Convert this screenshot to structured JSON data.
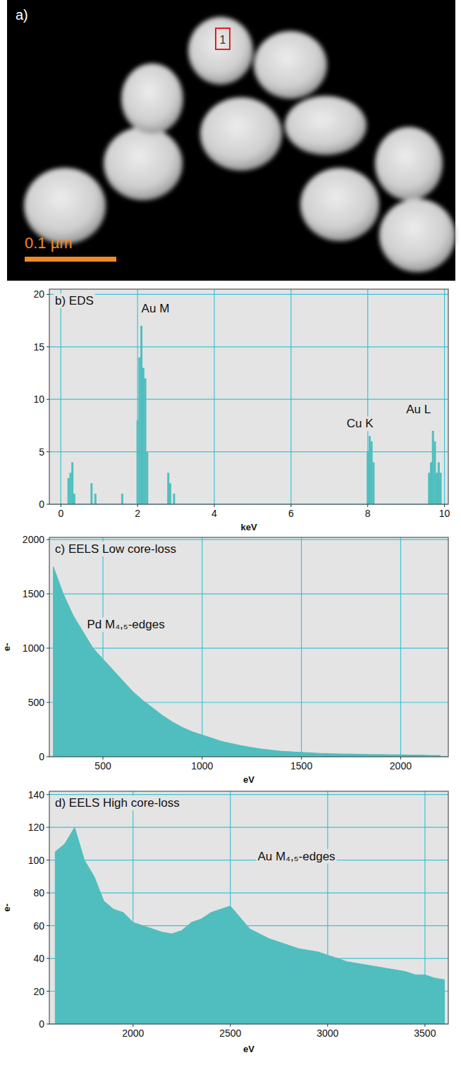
{
  "chart_data": [
    {
      "type": "image",
      "title": "a)",
      "region_label": "1",
      "scale_bar_label": "0.1 µm"
    },
    {
      "type": "bar",
      "title": "b) EDS",
      "x_label": "keV",
      "color": "#50bebe",
      "grid": true,
      "x": [
        0.2,
        0.25,
        0.3,
        0.35,
        0.8,
        0.9,
        1.6,
        2.0,
        2.05,
        2.1,
        2.15,
        2.2,
        2.25,
        2.8,
        2.85,
        2.95,
        8.0,
        8.05,
        8.1,
        8.15,
        9.6,
        9.65,
        9.7,
        9.75,
        9.8,
        9.85,
        9.9
      ],
      "values": [
        2.5,
        3,
        4,
        1,
        2,
        1,
        1,
        8,
        14,
        17,
        13,
        12,
        5,
        3,
        2,
        1,
        5,
        6.5,
        6,
        4,
        3,
        4,
        7,
        6,
        3,
        4,
        3
      ],
      "xlim": [
        -0.3,
        10.1
      ],
      "ylim": [
        0,
        20.5
      ],
      "xticks": [
        0,
        2,
        4,
        6,
        8,
        10
      ],
      "yticks": [
        0,
        5,
        10,
        15,
        20
      ],
      "annotations": [
        {
          "text": "Au M",
          "x": 2.1,
          "y": 18.3
        },
        {
          "text": "Cu K",
          "x": 7.45,
          "y": 7.3
        },
        {
          "text": "Au L",
          "x": 9.0,
          "y": 8.7
        }
      ]
    },
    {
      "type": "area",
      "title": "c) EELS Low core-loss",
      "x_label": "eV",
      "y_label": "e-",
      "color": "#50bebe",
      "grid": true,
      "x": [
        250,
        300,
        350,
        400,
        450,
        500,
        550,
        600,
        650,
        700,
        750,
        800,
        850,
        900,
        950,
        1000,
        1050,
        1100,
        1150,
        1200,
        1250,
        1300,
        1350,
        1400,
        1450,
        1500,
        1550,
        1600,
        1650,
        1700,
        1750,
        1800,
        1850,
        1900,
        1950,
        2000,
        2050,
        2100,
        2150,
        2200
      ],
      "values": [
        1750,
        1500,
        1300,
        1150,
        1000,
        900,
        800,
        700,
        600,
        520,
        450,
        380,
        320,
        270,
        230,
        200,
        170,
        140,
        120,
        100,
        85,
        70,
        60,
        50,
        45,
        40,
        35,
        30,
        28,
        25,
        25,
        22,
        20,
        20,
        18,
        18,
        15,
        15,
        12,
        12
      ],
      "xlim": [
        230,
        2240
      ],
      "ylim": [
        0,
        2020
      ],
      "xticks": [
        500,
        1000,
        1500,
        2000
      ],
      "yticks": [
        0,
        500,
        1000,
        1500,
        2000
      ],
      "annotations": [
        {
          "text": "Pd M₄,₅-edges",
          "x": 420,
          "y": 1180
        }
      ]
    },
    {
      "type": "area",
      "title": "d) EELS High core-loss",
      "x_label": "eV",
      "y_label": "e-",
      "color": "#50bebe",
      "grid": true,
      "x": [
        1600,
        1650,
        1700,
        1750,
        1800,
        1850,
        1900,
        1950,
        2000,
        2050,
        2100,
        2150,
        2200,
        2250,
        2300,
        2350,
        2400,
        2450,
        2500,
        2550,
        2600,
        2650,
        2700,
        2750,
        2800,
        2850,
        2900,
        2950,
        3000,
        3050,
        3100,
        3150,
        3200,
        3250,
        3300,
        3350,
        3400,
        3450,
        3500,
        3550,
        3600
      ],
      "values": [
        105,
        110,
        120,
        100,
        90,
        75,
        70,
        68,
        62,
        60,
        58,
        56,
        55,
        57,
        62,
        64,
        68,
        70,
        72,
        65,
        58,
        55,
        52,
        50,
        48,
        46,
        45,
        44,
        42,
        40,
        38,
        37,
        36,
        35,
        34,
        33,
        32,
        30,
        30,
        28,
        27
      ],
      "xlim": [
        1570,
        3620
      ],
      "ylim": [
        0,
        142
      ],
      "xticks": [
        2000,
        2500,
        3000,
        3500
      ],
      "yticks": [
        0,
        20,
        40,
        60,
        80,
        100,
        120,
        140
      ],
      "annotations": [
        {
          "text": "Au M₄,₅-edges",
          "x": 2640,
          "y": 100
        }
      ]
    }
  ]
}
